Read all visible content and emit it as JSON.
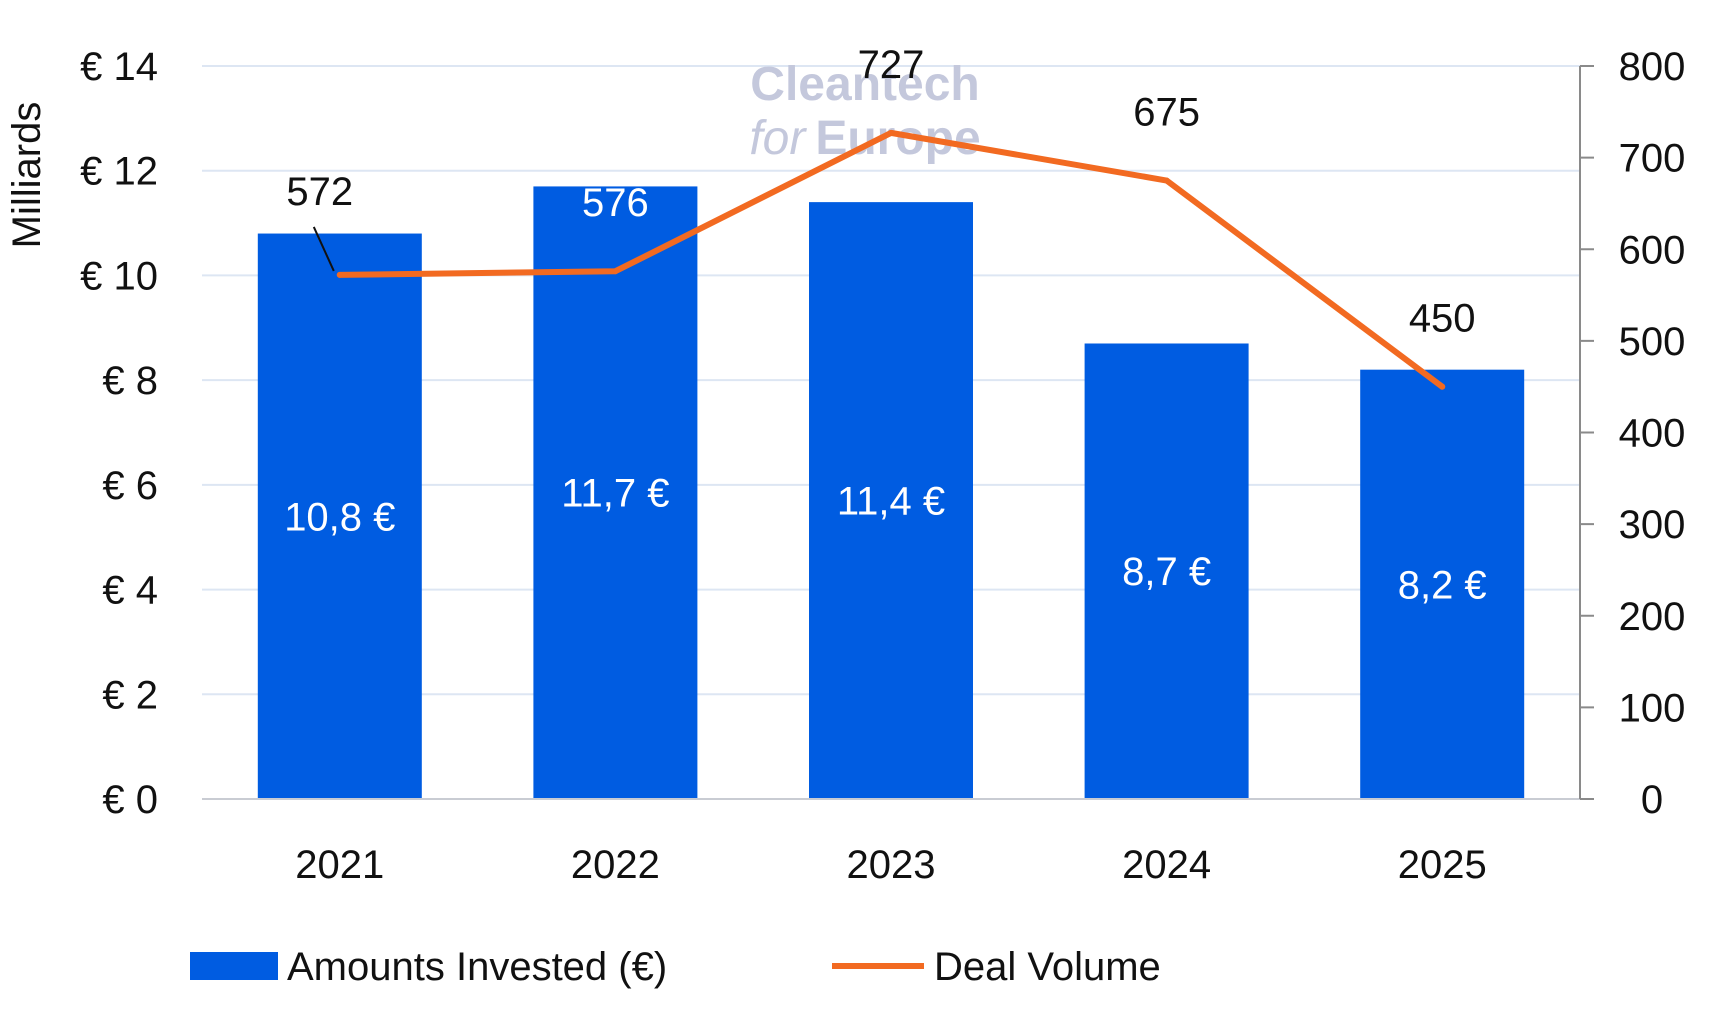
{
  "chart_data": {
    "type": "bar",
    "categories": [
      "2021",
      "2022",
      "2023",
      "2024",
      "2025"
    ],
    "ylabel": "Milliards",
    "y_left": {
      "range": [
        0,
        14
      ],
      "ticks": [
        "€ 0",
        "€ 2",
        "€ 4",
        "€ 6",
        "€ 8",
        "€ 10",
        "€ 12",
        "€ 14"
      ],
      "tick_values": [
        0,
        2,
        4,
        6,
        8,
        10,
        12,
        14
      ]
    },
    "y_right": {
      "range": [
        0,
        800
      ],
      "ticks": [
        "0",
        "100",
        "200",
        "300",
        "400",
        "500",
        "600",
        "700",
        "800"
      ],
      "tick_values": [
        0,
        100,
        200,
        300,
        400,
        500,
        600,
        700,
        800
      ]
    },
    "grid": true,
    "series": [
      {
        "name": "Amounts Invested (€)",
        "type": "bar",
        "axis": "left",
        "color": "#005ce1",
        "values": [
          10.8,
          11.7,
          11.4,
          8.7,
          8.2
        ],
        "labels": [
          "10,8 €",
          "11,7 €",
          "11,4 €",
          "8,7 €",
          "8,2 €"
        ]
      },
      {
        "name": "Deal Volume",
        "type": "line",
        "axis": "right",
        "color": "#f26a21",
        "values": [
          572,
          576,
          727,
          675,
          450
        ],
        "labels": [
          "572",
          "576",
          "727",
          "675",
          "450"
        ]
      }
    ],
    "legend_position": "bottom-left"
  },
  "watermark": {
    "line1": "Cleantech",
    "line2_a": "for",
    "line2_b": "Europe"
  }
}
